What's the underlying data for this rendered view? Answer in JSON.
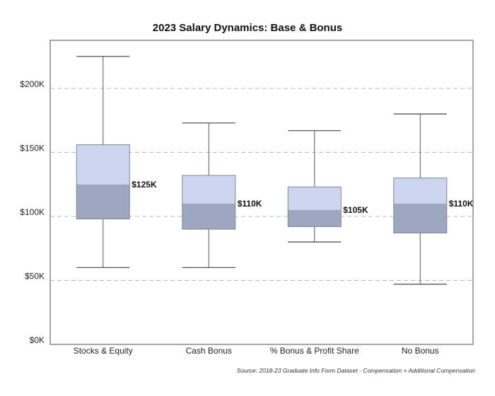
{
  "chart_data": {
    "type": "box",
    "title": "2023 Salary Dynamics: Base & Bonus",
    "source": "Source: 2018-23 Graduate Info Form Dataset - Compensation + Additional Compensation",
    "categories": [
      "Stocks & Equity",
      "Cash Bonus",
      "% Bonus & Profit Share",
      "No Bonus"
    ],
    "ylim": [
      0,
      235000
    ],
    "yticks": [
      0,
      50000,
      100000,
      150000,
      200000
    ],
    "ytick_labels": [
      "$0K",
      "$50K",
      "$100K",
      "$150K",
      "$200K"
    ],
    "grid": "horizontal dashed",
    "boxes": [
      {
        "category": "Stocks & Equity",
        "min": 60000,
        "q1": 98000,
        "median": 125000,
        "q3": 156000,
        "max": 225000,
        "label": "$125K"
      },
      {
        "category": "Cash Bonus",
        "min": 60000,
        "q1": 90000,
        "median": 110000,
        "q3": 132000,
        "max": 173000,
        "label": "$110K"
      },
      {
        "category": "% Bonus & Profit Share",
        "min": 80000,
        "q1": 92000,
        "median": 105000,
        "q3": 123000,
        "max": 167000,
        "label": "$105K"
      },
      {
        "category": "No Bonus",
        "min": 47000,
        "q1": 87000,
        "median": 110000,
        "q3": 130000,
        "max": 180000,
        "label": "$110K"
      }
    ],
    "colors": {
      "lower_box": "#9fa6bf",
      "upper_box": "#cdd6ee",
      "whisker": "#555555",
      "grid": "#bbbbbb",
      "frame": "#888888"
    }
  }
}
